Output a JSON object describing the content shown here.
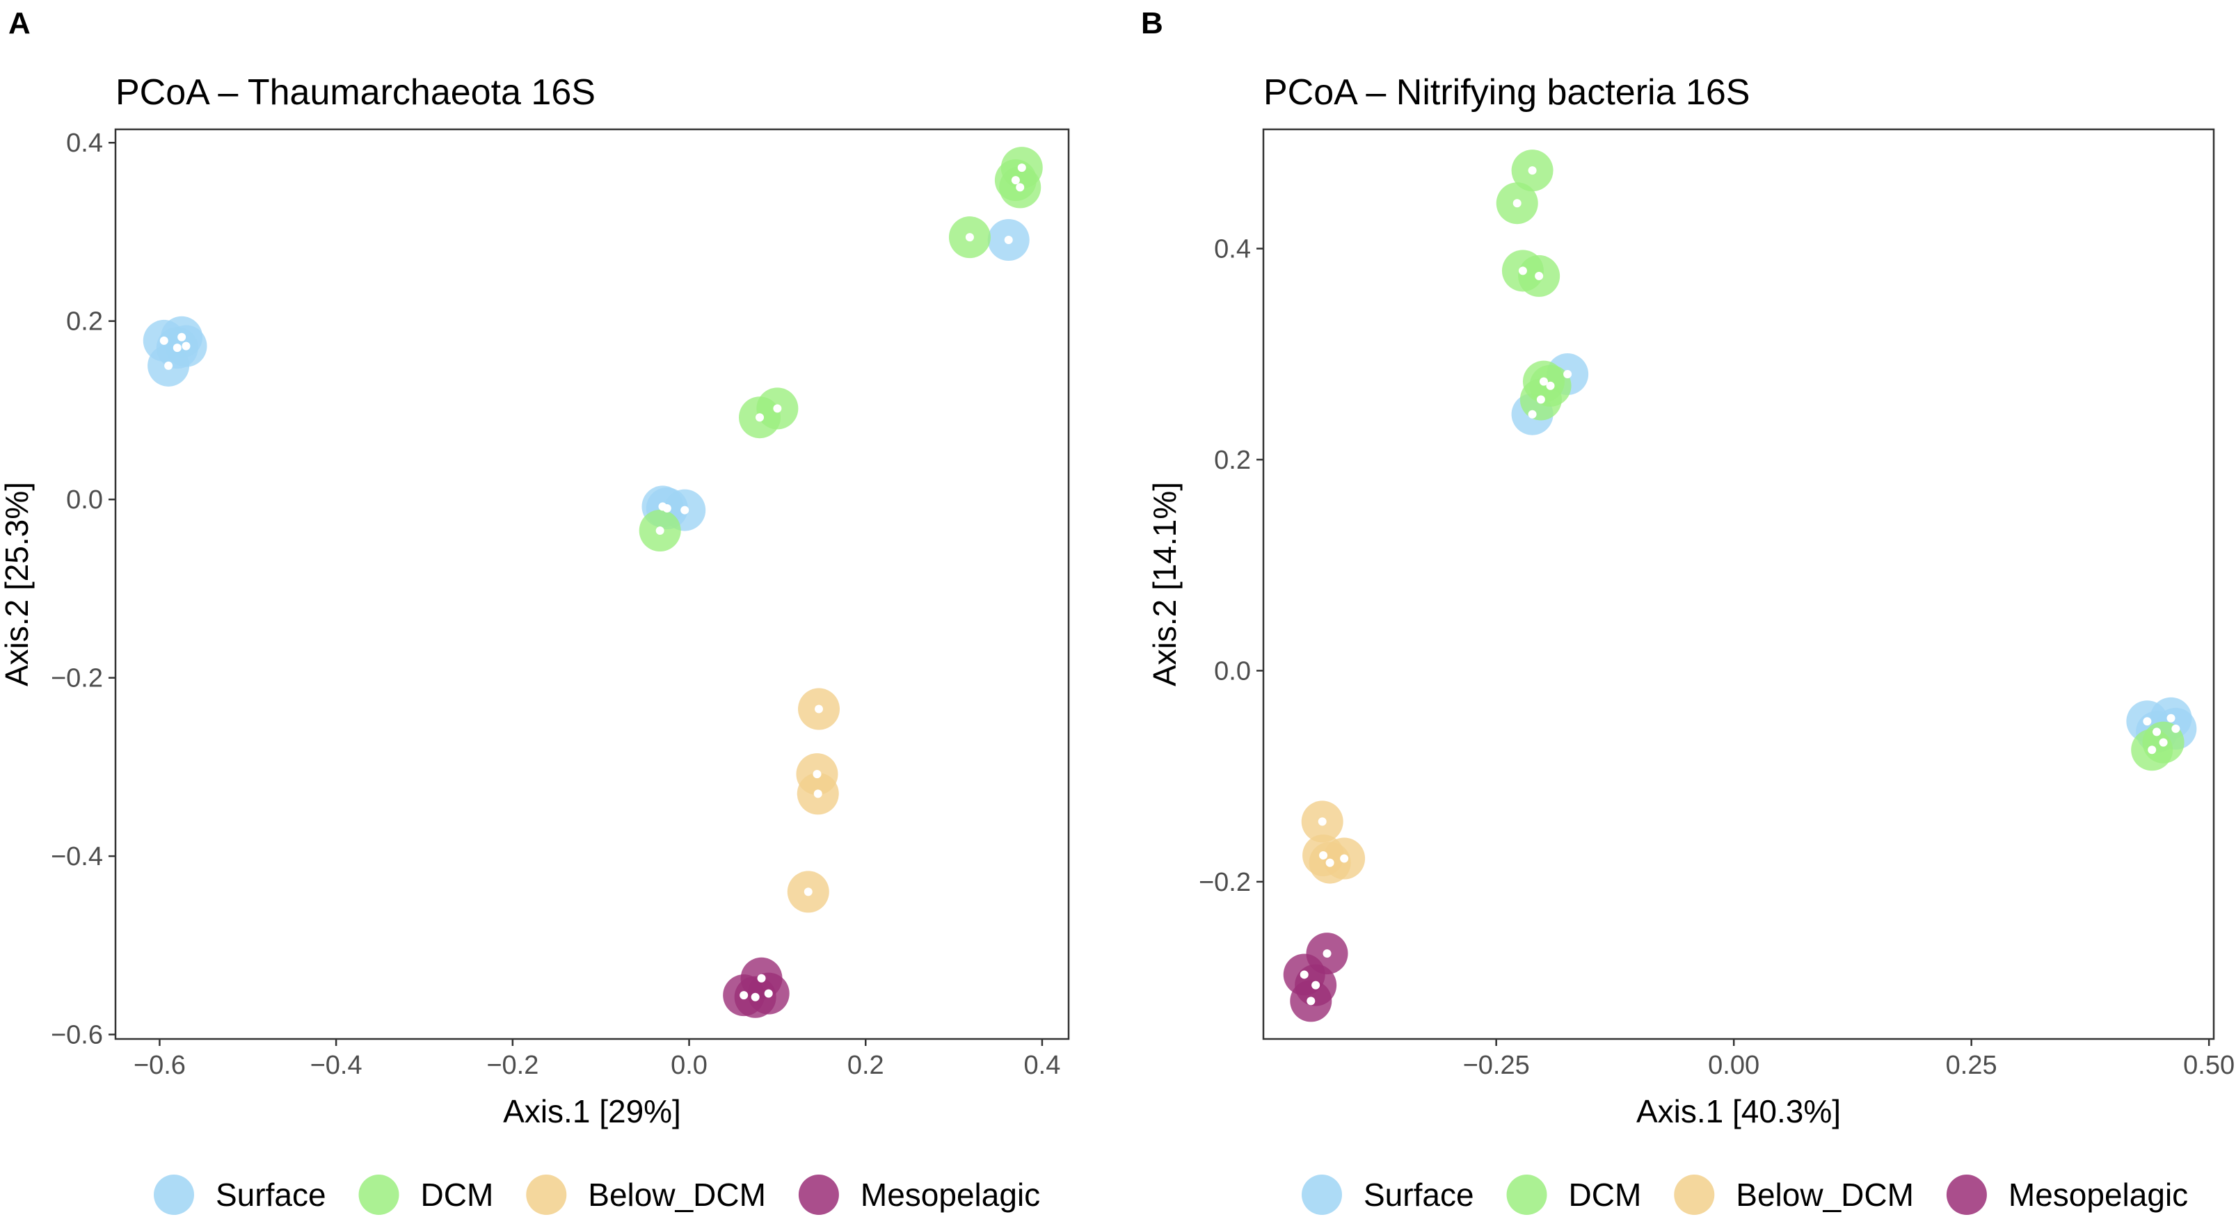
{
  "colors": {
    "Surface": "#9fd5f5",
    "DCM": "#9cef80",
    "Below_DCM": "#f2d08c",
    "Mesopelagic": "#9b2f78"
  },
  "chart_data": [
    {
      "type": "scatter",
      "panel": "A",
      "title": "PCoA – Thaumarchaeota 16S",
      "xlabel": "Axis.1   [29%]",
      "ylabel": "Axis.2   [25.3%]",
      "xlim": [
        -0.65,
        0.43
      ],
      "ylim": [
        -0.605,
        0.415
      ],
      "xticks": [
        {
          "value": -0.6,
          "label": "−0.6"
        },
        {
          "value": -0.4,
          "label": "−0.4"
        },
        {
          "value": -0.2,
          "label": "−0.2"
        },
        {
          "value": 0.0,
          "label": "0.0"
        },
        {
          "value": 0.2,
          "label": "0.2"
        },
        {
          "value": 0.4,
          "label": "0.4"
        }
      ],
      "yticks": [
        {
          "value": -0.6,
          "label": "−0.6"
        },
        {
          "value": -0.4,
          "label": "−0.4"
        },
        {
          "value": -0.2,
          "label": "−0.2"
        },
        {
          "value": 0.0,
          "label": "0.0"
        },
        {
          "value": 0.2,
          "label": "0.2"
        },
        {
          "value": 0.4,
          "label": "0.4"
        }
      ],
      "grid": false,
      "legend_position": "bottom",
      "series": [
        {
          "name": "Surface",
          "points": [
            [
              -0.595,
              0.178
            ],
            [
              -0.575,
              0.182
            ],
            [
              -0.57,
              0.172
            ],
            [
              -0.59,
              0.15
            ],
            [
              -0.58,
              0.17
            ],
            [
              -0.03,
              -0.008
            ],
            [
              -0.005,
              -0.012
            ],
            [
              -0.025,
              -0.01
            ],
            [
              0.362,
              0.291
            ]
          ]
        },
        {
          "name": "DCM",
          "points": [
            [
              0.377,
              0.372
            ],
            [
              0.37,
              0.358
            ],
            [
              0.375,
              0.35
            ],
            [
              0.318,
              0.294
            ],
            [
              0.08,
              0.092
            ],
            [
              0.1,
              0.102
            ],
            [
              -0.033,
              -0.035
            ]
          ]
        },
        {
          "name": "Below_DCM",
          "points": [
            [
              0.147,
              -0.235
            ],
            [
              0.145,
              -0.308
            ],
            [
              0.146,
              -0.33
            ],
            [
              0.135,
              -0.44
            ]
          ]
        },
        {
          "name": "Mesopelagic",
          "points": [
            [
              0.082,
              -0.537
            ],
            [
              0.062,
              -0.556
            ],
            [
              0.075,
              -0.558
            ],
            [
              0.09,
              -0.554
            ]
          ]
        }
      ]
    },
    {
      "type": "scatter",
      "panel": "B",
      "title": "PCoA – Nitrifying bacteria 16S",
      "xlabel": "Axis.1   [40.3%]",
      "ylabel": "Axis.2   [14.1%]",
      "xlim": [
        -0.495,
        0.505
      ],
      "ylim": [
        -0.349,
        0.513
      ],
      "xticks": [
        {
          "value": -0.25,
          "label": "−0.25"
        },
        {
          "value": 0.0,
          "label": "0.00"
        },
        {
          "value": 0.25,
          "label": "0.25"
        },
        {
          "value": 0.5,
          "label": "0.50"
        }
      ],
      "yticks": [
        {
          "value": -0.2,
          "label": "−0.2"
        },
        {
          "value": 0.0,
          "label": "0.0"
        },
        {
          "value": 0.2,
          "label": "0.2"
        },
        {
          "value": 0.4,
          "label": "0.4"
        }
      ],
      "grid": false,
      "legend_position": "bottom",
      "series": [
        {
          "name": "Surface",
          "points": [
            [
              -0.175,
              0.281
            ],
            [
              -0.212,
              0.243
            ],
            [
              0.435,
              -0.048
            ],
            [
              0.46,
              -0.045
            ],
            [
              0.465,
              -0.055
            ],
            [
              0.445,
              -0.058
            ]
          ]
        },
        {
          "name": "DCM",
          "points": [
            [
              -0.212,
              0.474
            ],
            [
              -0.228,
              0.443
            ],
            [
              -0.222,
              0.379
            ],
            [
              -0.205,
              0.374
            ],
            [
              -0.2,
              0.274
            ],
            [
              -0.193,
              0.27
            ],
            [
              -0.203,
              0.257
            ],
            [
              0.44,
              -0.075
            ],
            [
              0.452,
              -0.068
            ]
          ]
        },
        {
          "name": "Below_DCM",
          "points": [
            [
              -0.433,
              -0.143
            ],
            [
              -0.432,
              -0.175
            ],
            [
              -0.425,
              -0.182
            ],
            [
              -0.41,
              -0.178
            ]
          ]
        },
        {
          "name": "Mesopelagic",
          "points": [
            [
              -0.428,
              -0.268
            ],
            [
              -0.452,
              -0.288
            ],
            [
              -0.44,
              -0.298
            ],
            [
              -0.445,
              -0.313
            ]
          ]
        }
      ]
    }
  ],
  "legend": {
    "entries": [
      "Surface",
      "DCM",
      "Below_DCM",
      "Mesopelagic"
    ]
  }
}
